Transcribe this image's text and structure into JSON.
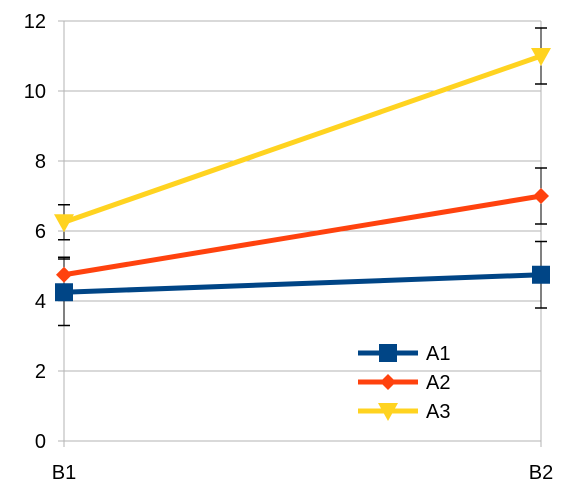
{
  "chart_data": {
    "type": "line",
    "categories": [
      "B1",
      "B2"
    ],
    "series": [
      {
        "name": "A1",
        "values": [
          4.25,
          4.75
        ],
        "error": [
          0.95,
          0.95
        ],
        "color": "#004586",
        "marker": "square"
      },
      {
        "name": "A2",
        "values": [
          4.75,
          7.0
        ],
        "error": [
          0.5,
          0.8
        ],
        "color": "#ff420e",
        "marker": "diamond"
      },
      {
        "name": "A3",
        "values": [
          6.25,
          11.0
        ],
        "error": [
          0.5,
          0.8
        ],
        "color": "#ffd320",
        "marker": "triangle-down"
      }
    ],
    "yticks": [
      "0",
      "2",
      "4",
      "6",
      "8",
      "10",
      "12"
    ],
    "ylim": [
      0,
      12
    ],
    "grid": "horizontal",
    "legend": "bottom-right",
    "title": "",
    "xlabel": "",
    "ylabel": ""
  }
}
